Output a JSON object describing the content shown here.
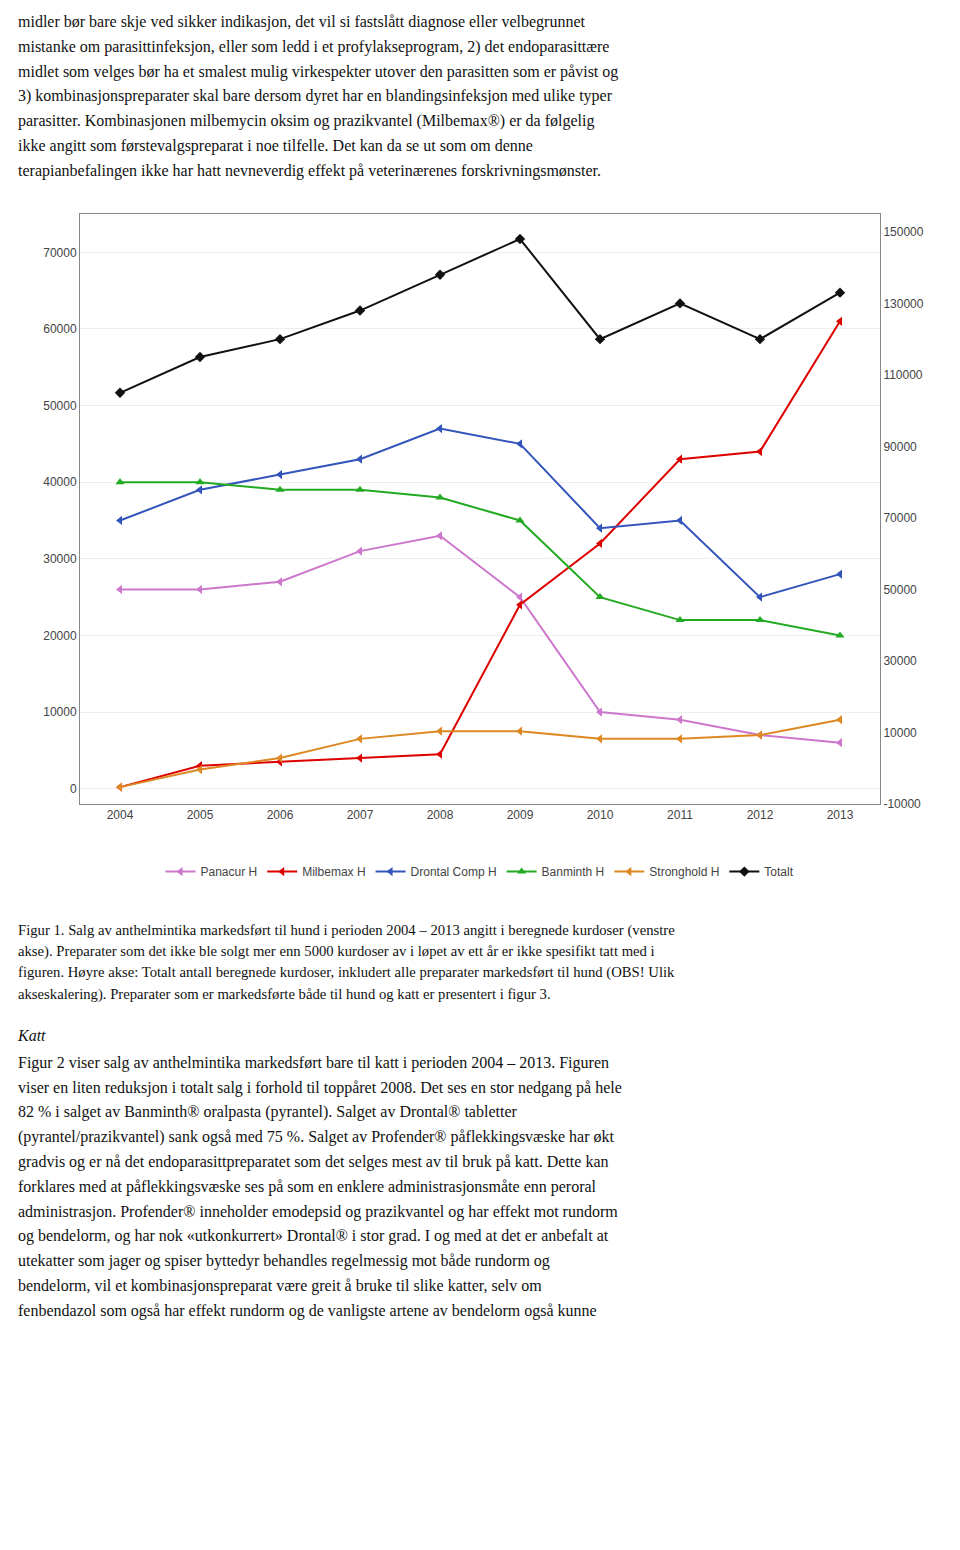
{
  "chart_data": {
    "type": "line",
    "x": [
      2004,
      2005,
      2006,
      2007,
      2008,
      2009,
      2010,
      2011,
      2012,
      2013
    ],
    "xlim": [
      2003.5,
      2013.5
    ],
    "xticks": [
      2004,
      2005,
      2006,
      2007,
      2008,
      2009,
      2010,
      2011,
      2012,
      2013
    ],
    "ylim": [
      -2000,
      75000
    ],
    "yticks": [
      0,
      10000,
      20000,
      30000,
      40000,
      50000,
      60000,
      70000
    ],
    "y2lim": [
      -10000,
      155000
    ],
    "y2ticks": [
      -10000,
      10000,
      30000,
      50000,
      70000,
      90000,
      110000,
      130000,
      150000
    ],
    "grid": "y",
    "legend": "bottom",
    "series": [
      {
        "name": "Panacur H",
        "color": "#cc77cc",
        "marker": "triangle-left",
        "values": [
          26000,
          26000,
          27000,
          31000,
          33000,
          25000,
          10000,
          9000,
          7000,
          6000
        ]
      },
      {
        "name": "Milbemax H",
        "color": "#dd0000",
        "marker": "triangle-left",
        "values": [
          200,
          3000,
          3500,
          4000,
          4500,
          24000,
          32000,
          43000,
          44000,
          61000
        ]
      },
      {
        "name": "Drontal Comp H",
        "color": "#3355bb",
        "marker": "triangle-left",
        "values": [
          35000,
          39000,
          41000,
          43000,
          47000,
          45000,
          34000,
          35000,
          25000,
          28000
        ]
      },
      {
        "name": "Banminth H",
        "color": "#22aa22",
        "marker": "triangle-up",
        "values": [
          40000,
          40000,
          39000,
          39000,
          38000,
          35000,
          25000,
          22000,
          22000,
          20000
        ]
      },
      {
        "name": "Stronghold H",
        "color": "#dd8822",
        "marker": "triangle-left",
        "values": [
          200,
          2500,
          4000,
          6500,
          7500,
          7500,
          6500,
          6500,
          7000,
          9000
        ]
      },
      {
        "name": "Totalt",
        "color": "#111111",
        "marker": "diamond",
        "axis": "y2",
        "values": [
          105000,
          115000,
          120000,
          128000,
          138000,
          148000,
          120000,
          130000,
          120000,
          133000
        ]
      }
    ],
    "annotations": [
      "midler bør bare skje ved sikker indikasjon, det vil si fastslått diagnose eller velbegrunnet\nmistanke om parasittinfeksjon, eller som ledd i et profylakseprogram, 2) det endoparasittære\nmidlet som velges bør ha et smalest mulig virkespekter utover den parasitten som er påvist og\n3) kombinasjonspreparater skal bare dersom dyret har en blandingsinfeksjon med ulike typer\nparasitter. Kombinasjonen milbemycin oksim og prazikvantel (Milbemax®) er da følgelig\nikke angitt som førstevalgspreparat i noe tilfelle. Det kan da se ut som om denne\nterapianbefalingen ikke har hatt nevneverdig effekt på veterinærenes forskrivningsmønster.",
      "Figur 1. Salg av anthelmintika markedsført til hund i perioden 2004 – 2013 angitt i beregnede kurdoser (venstre\nakse). Preparater som det ikke ble solgt mer enn 5000 kurdoser av i løpet av ett år er ikke spesifikt tatt med i\nfiguren. Høyre akse: Totalt antall beregnede kurdoser, inkludert alle preparater markedsført til hund (OBS! Ulik\nakseskalering). Preparater som er markedsførte både til hund og katt er presentert i figur 3.",
      "Katt",
      "Figur 2 viser salg av anthelmintika markedsført bare til katt i perioden 2004 – 2013. Figuren\nviser en liten reduksjon i totalt salg i forhold til toppåret 2008. Det ses en stor nedgang på hele\n82 % i salget av Banminth® oralpasta (pyrantel). Salget av Drontal® tabletter\n(pyrantel/prazikvantel) sank også med 75 %. Salget av Profender® påflekkingsvæske har økt\ngradvis og er nå det endoparasittpreparatet som det selges mest av til bruk på katt. Dette kan\nforklares med at påflekkingsvæske ses på som en enklere administrasjonsmåte enn peroral\nadministrasjon. Profender® inneholder emodepsid og prazikvantel og har effekt mot rundorm\nog bendelorm, og har nok «ut­konkurrert» Drontal® i stor grad. I og med at det er anbefalt at\nutekatter som jager og spiser byttedyr behandles regelmessig mot både rundorm og\nbendelorm, vil et kombinasjonspreparat være greit å bruke til slike katter, selv om\nfenbendazol som også har effekt rundorm og de vanligste artene av bendelorm også kunne"
    ]
  }
}
